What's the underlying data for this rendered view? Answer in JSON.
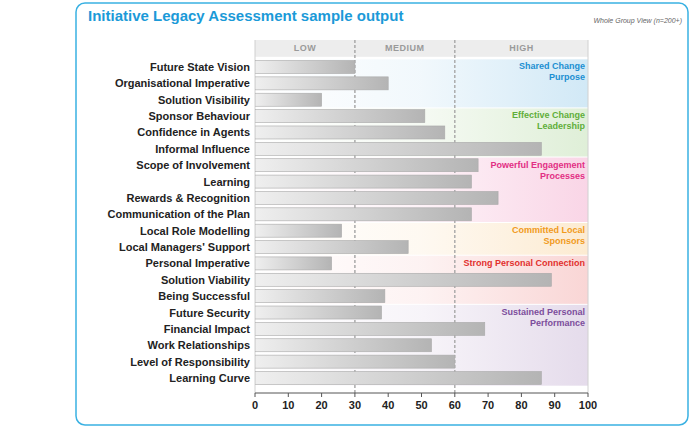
{
  "chart_data": {
    "type": "bar",
    "orientation": "horizontal",
    "title": "Initiative Legacy Assessment sample output",
    "subtitle": "Whole Group View (n=200+)",
    "categories": [
      "Future State Vision",
      "Organisational Imperative",
      "Solution Visibility",
      "Sponsor Behaviour",
      "Confidence in Agents",
      "Informal Influence",
      "Scope of Involvement",
      "Learning",
      "Rewards & Recognition",
      "Communication of the Plan",
      "Local Role Modelling",
      "Local Managers' Support",
      "Personal Imperative",
      "Solution Viability",
      "Being Successful",
      "Future Security",
      "Financial Impact",
      "Work Relationships",
      "Level of Responsibility",
      "Learning Curve"
    ],
    "values": [
      30,
      40,
      20,
      51,
      57,
      86,
      67,
      65,
      73,
      65,
      26,
      46,
      23,
      89,
      39,
      38,
      69,
      53,
      60,
      86
    ],
    "color": "#b4b4b4",
    "xlim": [
      0,
      100
    ],
    "xticks": [
      0,
      10,
      20,
      30,
      40,
      50,
      60,
      70,
      80,
      90,
      100
    ],
    "zones": [
      {
        "label": "LOW",
        "from": 0,
        "to": 30
      },
      {
        "label": "MEDIUM",
        "from": 30,
        "to": 60
      },
      {
        "label": "HIGH",
        "from": 60,
        "to": 100
      }
    ],
    "groups": [
      {
        "label": [
          "Shared Change",
          "Purpose"
        ],
        "color": "#1b8fd2",
        "rows": 3
      },
      {
        "label": [
          "Effective Change",
          "Leadership"
        ],
        "color": "#5fae3a",
        "rows": 3
      },
      {
        "label": [
          "Powerful Engagement",
          "Processes"
        ],
        "color": "#e22f84",
        "rows": 4
      },
      {
        "label": [
          "Committed Local",
          "Sponsors"
        ],
        "color": "#f19a1c",
        "rows": 2
      },
      {
        "label": [
          "Strong Personal Connection"
        ],
        "color": "#e2302e",
        "rows": 3
      },
      {
        "label": [
          "Sustained Personal",
          "Performance"
        ],
        "color": "#7c4d9c",
        "rows": 5
      }
    ]
  }
}
